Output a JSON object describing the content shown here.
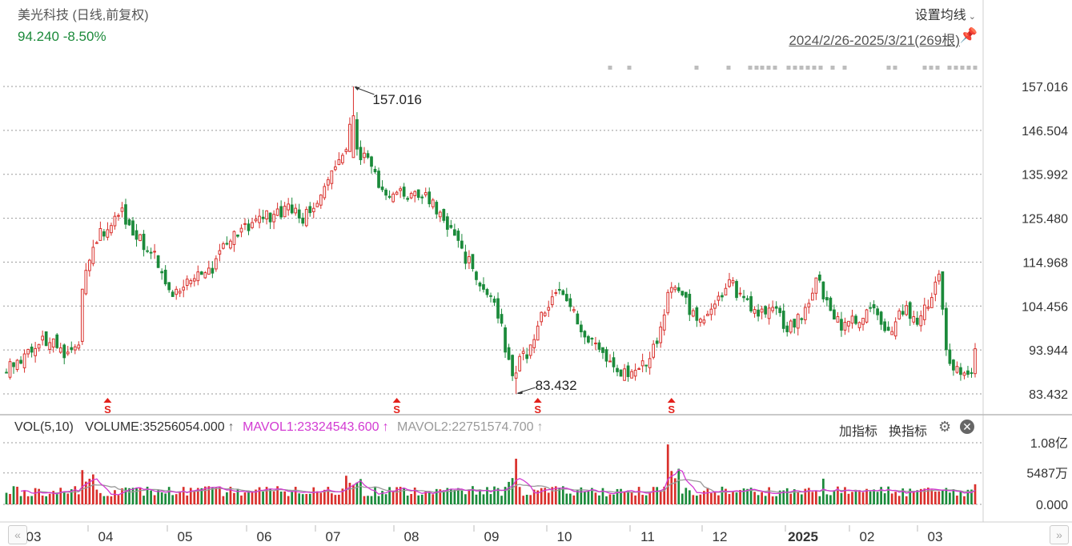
{
  "header": {
    "title": "美光科技 (日线,前复权)",
    "price_line": "94.240 -8.50%",
    "ma_setting_label": "设置均线",
    "range_label": "2024/2/26-2025/3/21(269根)"
  },
  "volume_header": {
    "vol_label": "VOL(5,10)",
    "volume_text": "VOLUME:35256054.000",
    "mavol1_text": "MAVOL1:23324543.600",
    "mavol2_text": "MAVOL2:22751574.700",
    "arrow": "↑"
  },
  "toolbar": {
    "add_indicator": "加指标",
    "switch_indicator": "换指标"
  },
  "colors": {
    "up": "#d9302c",
    "down": "#1b8a3a",
    "mavol1": "#d23ad2",
    "mavol2": "#9a9a9a",
    "grid": "#9a9a9a"
  },
  "chart_data": [
    {
      "type": "candlestick",
      "title": "美光科技 (日线,前复权)",
      "x_period": "2024/2/26-2025/3/21",
      "bar_count": 269,
      "price_ticks": [
        "157.016",
        "146.504",
        "135.992",
        "125.480",
        "114.968",
        "104.456",
        "93.944",
        "83.432"
      ],
      "ylim": [
        83.432,
        157.016
      ],
      "x_tick_labels": [
        "03",
        "04",
        "05",
        "06",
        "07",
        "08",
        "09",
        "10",
        "11",
        "12",
        "2025",
        "02",
        "03"
      ],
      "annotations": [
        {
          "label": "157.016",
          "type": "high"
        },
        {
          "label": "83.432",
          "type": "low"
        }
      ],
      "markers": [
        "S",
        "S",
        "S",
        "S"
      ],
      "anchors": [
        [
          0,
          89.5
        ],
        [
          8,
          95
        ],
        [
          12,
          97
        ],
        [
          16,
          92
        ],
        [
          20,
          95
        ],
        [
          21,
          108
        ],
        [
          24,
          119
        ],
        [
          28,
          124
        ],
        [
          32,
          127
        ],
        [
          36,
          121
        ],
        [
          40,
          118
        ],
        [
          44,
          111
        ],
        [
          46,
          107
        ],
        [
          50,
          111
        ],
        [
          54,
          113
        ],
        [
          56,
          112
        ],
        [
          60,
          118
        ],
        [
          65,
          123
        ],
        [
          70,
          125
        ],
        [
          78,
          128
        ],
        [
          82,
          125
        ],
        [
          88,
          133
        ],
        [
          94,
          143
        ],
        [
          96,
          156
        ],
        [
          97,
          141
        ],
        [
          100,
          139
        ],
        [
          104,
          131
        ],
        [
          108,
          133
        ],
        [
          112,
          131
        ],
        [
          117,
          130
        ],
        [
          120,
          127
        ],
        [
          124,
          120
        ],
        [
          128,
          115
        ],
        [
          132,
          108
        ],
        [
          136,
          103
        ],
        [
          138,
          95
        ],
        [
          140,
          89
        ],
        [
          144,
          93
        ],
        [
          148,
          103
        ],
        [
          152,
          108
        ],
        [
          156,
          104
        ],
        [
          160,
          98
        ],
        [
          164,
          93
        ],
        [
          168,
          89
        ],
        [
          172,
          88
        ],
        [
          176,
          90
        ],
        [
          180,
          96
        ],
        [
          184,
          110
        ],
        [
          188,
          105
        ],
        [
          192,
          101
        ],
        [
          196,
          104
        ],
        [
          200,
          110
        ],
        [
          204,
          106
        ],
        [
          208,
          103
        ],
        [
          212,
          104
        ],
        [
          216,
          99
        ],
        [
          220,
          102
        ],
        [
          224,
          111
        ],
        [
          228,
          104
        ],
        [
          232,
          99
        ],
        [
          236,
          102
        ],
        [
          240,
          105
        ],
        [
          244,
          98
        ],
        [
          248,
          104
        ],
        [
          252,
          101
        ],
        [
          256,
          107
        ],
        [
          258,
          111
        ],
        [
          260,
          94
        ],
        [
          264,
          87
        ],
        [
          268,
          89
        ],
        [
          269,
          94.2
        ]
      ],
      "volume_ticks": [
        "1.08亿",
        "5487万",
        "0.000"
      ],
      "volume_max": 108000000
    }
  ]
}
